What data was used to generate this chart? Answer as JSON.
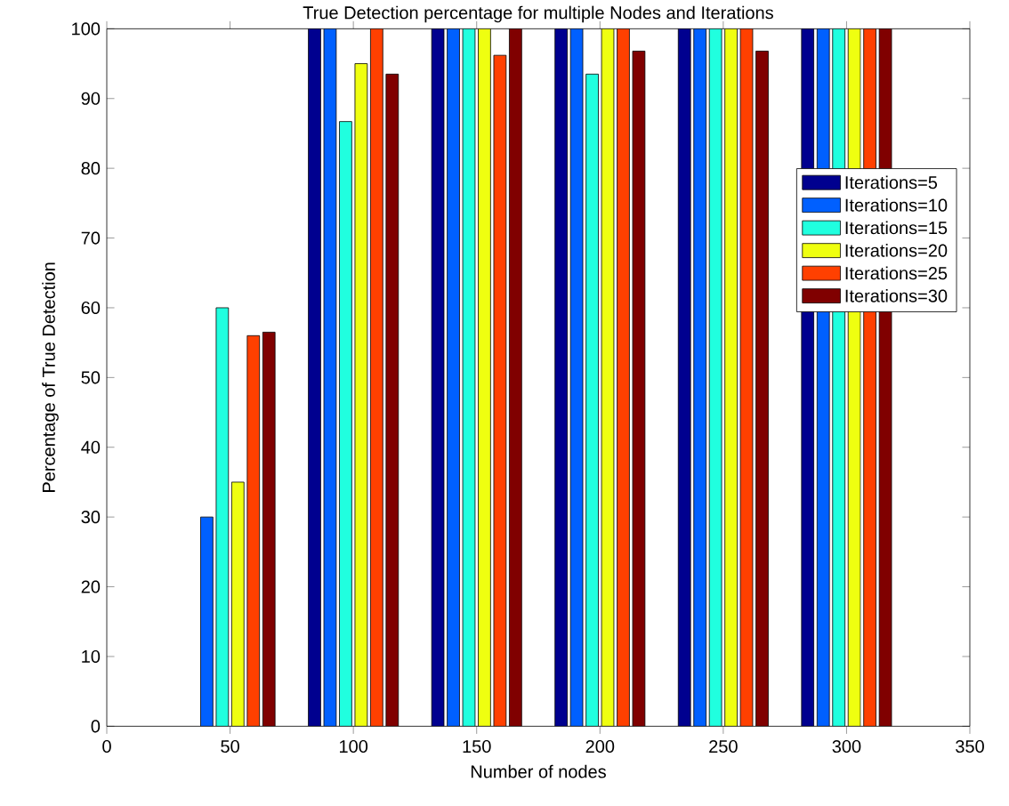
{
  "chart_data": {
    "type": "bar",
    "title": "True Detection percentage for multiple Nodes and Iterations",
    "xlabel": "Number of nodes",
    "ylabel": "Percentage of True Detection",
    "x": [
      50,
      100,
      150,
      200,
      250,
      300
    ],
    "series": [
      {
        "name": "Iterations=5",
        "color": "#00008f",
        "values": [
          null,
          100,
          100,
          100,
          100,
          100
        ]
      },
      {
        "name": "Iterations=10",
        "color": "#0060ff",
        "values": [
          30,
          100,
          100,
          100,
          100,
          100
        ]
      },
      {
        "name": "Iterations=15",
        "color": "#20ffdf",
        "values": [
          60,
          86.7,
          100,
          93.5,
          100,
          100
        ]
      },
      {
        "name": "Iterations=20",
        "color": "#efff10",
        "values": [
          35,
          95,
          100,
          100,
          100,
          100
        ]
      },
      {
        "name": "Iterations=25",
        "color": "#ff4000",
        "values": [
          56,
          100,
          96.2,
          100,
          100,
          100
        ]
      },
      {
        "name": "Iterations=30",
        "color": "#800000",
        "values": [
          56.5,
          93.5,
          100,
          96.8,
          96.8,
          100
        ]
      }
    ],
    "xlim": [
      0,
      350
    ],
    "xticks": [
      0,
      50,
      100,
      150,
      200,
      250,
      300,
      350
    ],
    "ylim": [
      0,
      100
    ],
    "yticks": [
      0,
      10,
      20,
      30,
      40,
      50,
      60,
      70,
      80,
      90,
      100
    ],
    "grid": false,
    "legend": "right"
  }
}
